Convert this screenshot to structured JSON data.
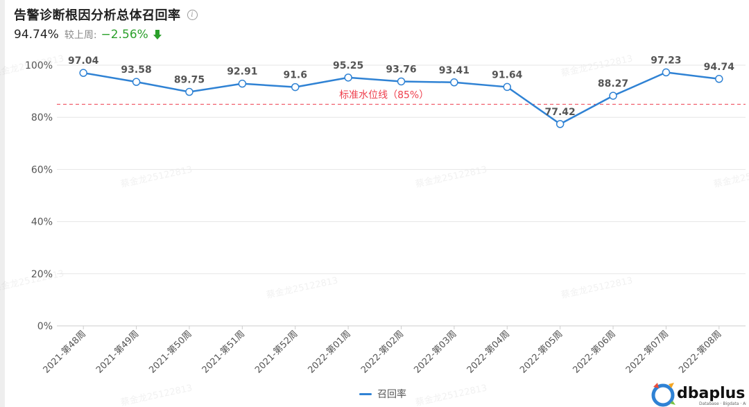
{
  "header": {
    "title": "告警诊断根因分析总体召回率",
    "kpi_value": "94.74%",
    "compare_label": "较上周:",
    "change": "−2.56%",
    "change_color": "#2ba02b",
    "info_icon": "info-icon",
    "trend_icon": "arrow-down-icon"
  },
  "chart_data": {
    "type": "line",
    "title": "告警诊断根因分析总体召回率",
    "categories": [
      "2021-第48周",
      "2021-第49周",
      "2021-第50周",
      "2021-第51周",
      "2021-第52周",
      "2022-第01周",
      "2022-第02周",
      "2022-第03周",
      "2022-第04周",
      "2022-第05周",
      "2022-第06周",
      "2022-第07周",
      "2022-第08周"
    ],
    "series": [
      {
        "name": "召回率",
        "values": [
          97.04,
          93.58,
          89.75,
          92.91,
          91.6,
          95.25,
          93.76,
          93.41,
          91.64,
          77.42,
          88.27,
          97.23,
          94.74
        ],
        "labels": [
          "97.04",
          "93.58",
          "89.75",
          "92.91",
          "91.6",
          "95.25",
          "93.76",
          "93.41",
          "91.64",
          "77.42",
          "88.27",
          "97.23",
          "94.74"
        ],
        "color": "#2f82d4"
      }
    ],
    "y_ticks": [
      "0%",
      "20%",
      "40%",
      "60%",
      "80%",
      "100%"
    ],
    "ylim": [
      0,
      100
    ],
    "reference_line": {
      "value": 85,
      "label": "标准水位线（85%）",
      "color": "#ee3f4d"
    },
    "grid": true,
    "legend_position": "bottom-center"
  },
  "legend": {
    "label": "召回率"
  },
  "watermark": {
    "text": "蔡金龙25122813"
  },
  "logo": {
    "text": "dbaplus",
    "subtitle": "Database · Bigdata · AIOps",
    "colors": [
      "#2f82d4",
      "#f5a623",
      "#e94e3c",
      "#7ac143"
    ]
  }
}
